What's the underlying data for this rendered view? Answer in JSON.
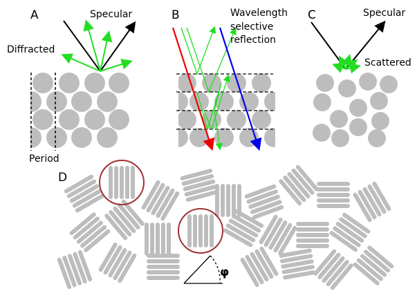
{
  "panels": [
    {
      "label": "A",
      "annotations": [
        "Specular",
        "Diffracted",
        "Period"
      ]
    },
    {
      "label": "B",
      "annotations": [
        "Wavelength",
        "selective",
        "reflection"
      ]
    },
    {
      "label": "C",
      "annotations": [
        "Specular",
        "Scattered"
      ]
    },
    {
      "label": "D",
      "annotations": [
        "φ"
      ]
    }
  ]
}
